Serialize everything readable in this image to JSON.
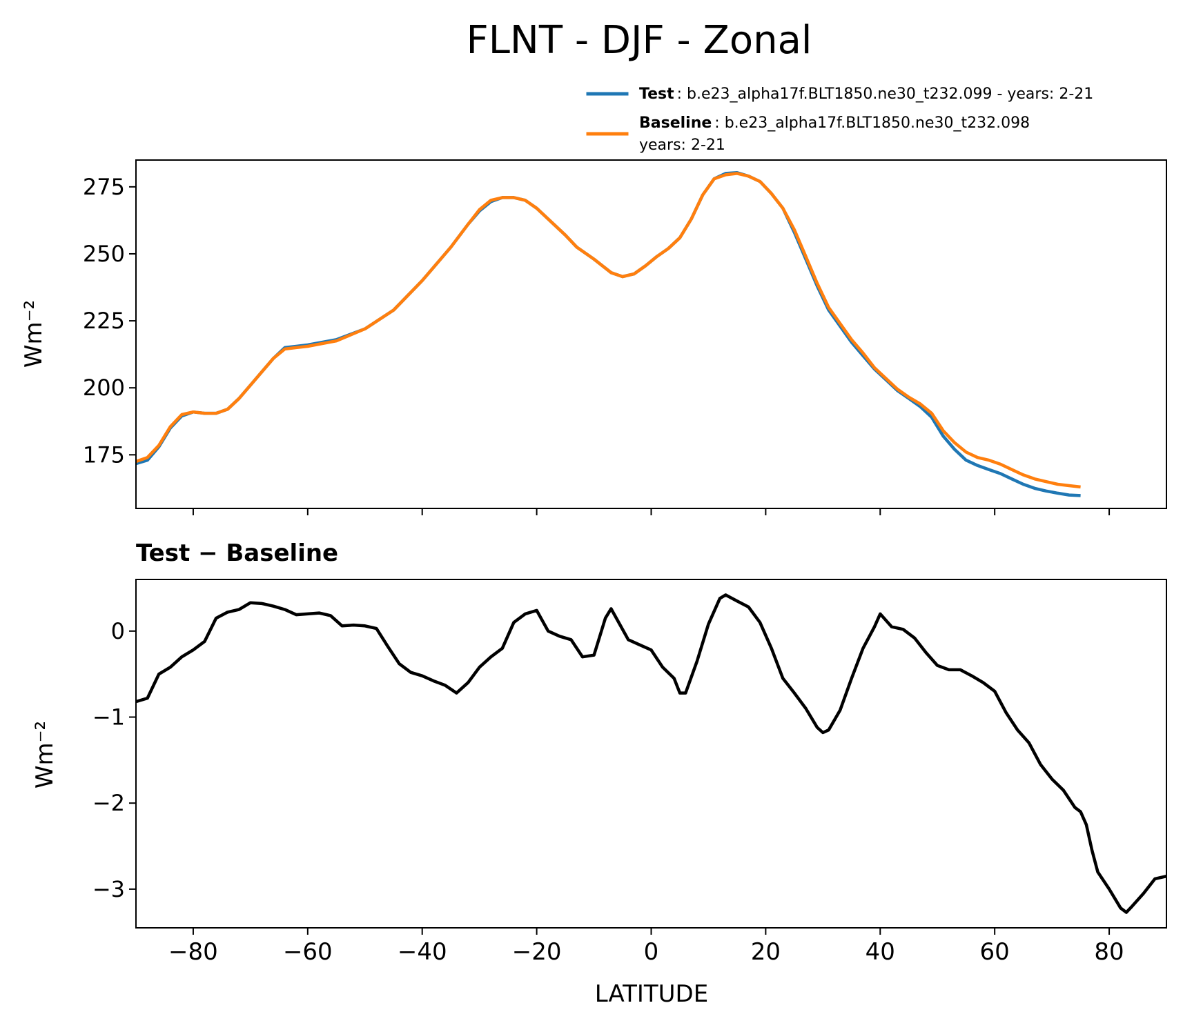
{
  "title": "FLNT - DJF - Zonal",
  "colors": {
    "test": "#1f77b4",
    "baseline": "#ff7f0e",
    "diff": "#000000"
  },
  "legend": {
    "placement": "above top panel, right",
    "items": [
      {
        "bold": "Test",
        "text": ": b.e23_alpha17f.BLT1850.ne30_t232.099 - years: 2-21",
        "text2": ""
      },
      {
        "bold": "Baseline",
        "text": ": b.e23_alpha17f.BLT1850.ne30_t232.098",
        "text2": "years: 2-21"
      }
    ]
  },
  "chart_data": [
    {
      "type": "line",
      "ylabel": "Wm⁻²",
      "xlim": [
        -90,
        90
      ],
      "ylim": [
        155,
        285
      ],
      "yticks": [
        175,
        200,
        225,
        250,
        275
      ],
      "ytick_labels": [
        "175",
        "200",
        "225",
        "250",
        "275"
      ],
      "series": [
        {
          "name": "Test",
          "points": [
            [
              -90,
              171.7
            ],
            [
              -88,
              173
            ],
            [
              -86,
              178
            ],
            [
              -84,
              185
            ],
            [
              -82,
              189.5
            ],
            [
              -80,
              191
            ],
            [
              -78,
              190.5
            ],
            [
              -76,
              190.5
            ],
            [
              -74,
              192
            ],
            [
              -72,
              196
            ],
            [
              -70,
              201
            ],
            [
              -68,
              206
            ],
            [
              -66,
              211
            ],
            [
              -64,
              215
            ],
            [
              -62,
              215.5
            ],
            [
              -60,
              216
            ],
            [
              -55,
              218
            ],
            [
              -50,
              222
            ],
            [
              -45,
              229
            ],
            [
              -40,
              240
            ],
            [
              -35,
              252.5
            ],
            [
              -32,
              261
            ],
            [
              -30,
              266
            ],
            [
              -28,
              269.5
            ],
            [
              -26,
              271
            ],
            [
              -24,
              271
            ],
            [
              -22,
              270
            ],
            [
              -20,
              267
            ],
            [
              -15,
              257
            ],
            [
              -13,
              252.5
            ],
            [
              -10,
              248
            ],
            [
              -7,
              243
            ],
            [
              -5,
              241.5
            ],
            [
              -3,
              242.5
            ],
            [
              -1,
              245.5
            ],
            [
              1,
              249
            ],
            [
              3,
              252
            ],
            [
              5,
              256
            ],
            [
              7,
              263
            ],
            [
              9,
              272
            ],
            [
              11,
              278
            ],
            [
              13,
              280
            ],
            [
              15,
              280.3
            ],
            [
              17,
              279
            ],
            [
              19,
              277
            ],
            [
              21,
              272.5
            ],
            [
              23,
              267
            ],
            [
              25,
              258
            ],
            [
              27,
              248
            ],
            [
              29,
              238
            ],
            [
              31,
              229
            ],
            [
              33,
              223
            ],
            [
              35,
              217
            ],
            [
              37,
              212
            ],
            [
              39,
              207
            ],
            [
              41,
              203
            ],
            [
              43,
              199
            ],
            [
              45,
              196
            ],
            [
              47,
              193
            ],
            [
              49,
              189
            ],
            [
              51,
              182
            ],
            [
              53,
              177
            ],
            [
              55,
              173
            ],
            [
              57,
              171
            ],
            [
              59,
              169.5
            ],
            [
              61,
              168
            ],
            [
              63,
              166
            ],
            [
              65,
              164
            ],
            [
              67,
              162.5
            ],
            [
              69,
              161.5
            ],
            [
              71,
              160.7
            ],
            [
              73,
              160
            ],
            [
              75,
              159.8
            ]
          ]
        },
        {
          "name": "Baseline",
          "points": [
            [
              -90,
              172.5
            ],
            [
              -88,
              174
            ],
            [
              -86,
              178.5
            ],
            [
              -84,
              185.5
            ],
            [
              -82,
              190
            ],
            [
              -80,
              191
            ],
            [
              -78,
              190.5
            ],
            [
              -76,
              190.5
            ],
            [
              -74,
              192
            ],
            [
              -72,
              196
            ],
            [
              -70,
              201
            ],
            [
              -68,
              206
            ],
            [
              -66,
              211
            ],
            [
              -64,
              214.5
            ],
            [
              -62,
              215
            ],
            [
              -60,
              215.5
            ],
            [
              -55,
              217.5
            ],
            [
              -50,
              222
            ],
            [
              -45,
              229
            ],
            [
              -40,
              240
            ],
            [
              -35,
              252.5
            ],
            [
              -32,
              261
            ],
            [
              -30,
              266.5
            ],
            [
              -28,
              270
            ],
            [
              -26,
              271
            ],
            [
              -24,
              271
            ],
            [
              -22,
              270
            ],
            [
              -20,
              267
            ],
            [
              -15,
              257
            ],
            [
              -13,
              252.5
            ],
            [
              -10,
              248
            ],
            [
              -7,
              243
            ],
            [
              -5,
              241.5
            ],
            [
              -3,
              242.5
            ],
            [
              -1,
              245.5
            ],
            [
              1,
              249
            ],
            [
              3,
              252
            ],
            [
              5,
              256
            ],
            [
              7,
              263
            ],
            [
              9,
              272
            ],
            [
              11,
              278
            ],
            [
              13,
              279.5
            ],
            [
              15,
              280
            ],
            [
              17,
              279
            ],
            [
              19,
              277
            ],
            [
              21,
              272.5
            ],
            [
              23,
              267
            ],
            [
              25,
              259
            ],
            [
              27,
              249
            ],
            [
              29,
              239
            ],
            [
              31,
              230
            ],
            [
              33,
              224
            ],
            [
              35,
              218
            ],
            [
              37,
              213
            ],
            [
              39,
              207.5
            ],
            [
              41,
              203.5
            ],
            [
              43,
              199.5
            ],
            [
              45,
              196.5
            ],
            [
              47,
              194
            ],
            [
              49,
              190.5
            ],
            [
              51,
              184
            ],
            [
              53,
              179.5
            ],
            [
              55,
              176
            ],
            [
              57,
              174
            ],
            [
              59,
              173
            ],
            [
              61,
              171.5
            ],
            [
              63,
              169.5
            ],
            [
              65,
              167.5
            ],
            [
              67,
              166
            ],
            [
              69,
              165
            ],
            [
              71,
              164
            ],
            [
              73,
              163.5
            ],
            [
              75,
              163
            ]
          ]
        }
      ]
    },
    {
      "type": "line",
      "title": "Test − Baseline",
      "xlabel": "LATITUDE",
      "ylabel": "Wm⁻²",
      "xlim": [
        -90,
        90
      ],
      "ylim": [
        -3.45,
        0.6
      ],
      "xticks": [
        -80,
        -60,
        -40,
        -20,
        0,
        20,
        40,
        60,
        80
      ],
      "xtick_labels": [
        "−80",
        "−60",
        "−40",
        "−20",
        "0",
        "20",
        "40",
        "60",
        "80"
      ],
      "yticks": [
        0,
        -1,
        -2,
        -3
      ],
      "ytick_labels": [
        "0",
        "−1",
        "−2",
        "−3"
      ],
      "series": [
        {
          "name": "Test − Baseline",
          "points": [
            [
              -90,
              -0.82
            ],
            [
              -88,
              -0.78
            ],
            [
              -86,
              -0.5
            ],
            [
              -84,
              -0.42
            ],
            [
              -82,
              -0.3
            ],
            [
              -80,
              -0.22
            ],
            [
              -78,
              -0.12
            ],
            [
              -76,
              0.15
            ],
            [
              -74,
              0.22
            ],
            [
              -72,
              0.25
            ],
            [
              -70,
              0.33
            ],
            [
              -68,
              0.32
            ],
            [
              -66,
              0.29
            ],
            [
              -64,
              0.25
            ],
            [
              -62,
              0.19
            ],
            [
              -60,
              0.2
            ],
            [
              -58,
              0.21
            ],
            [
              -56,
              0.18
            ],
            [
              -54,
              0.06
            ],
            [
              -52,
              0.07
            ],
            [
              -50,
              0.06
            ],
            [
              -48,
              0.03
            ],
            [
              -46,
              -0.18
            ],
            [
              -44,
              -0.38
            ],
            [
              -42,
              -0.48
            ],
            [
              -40,
              -0.52
            ],
            [
              -38,
              -0.58
            ],
            [
              -36,
              -0.63
            ],
            [
              -34,
              -0.72
            ],
            [
              -32,
              -0.6
            ],
            [
              -30,
              -0.42
            ],
            [
              -28,
              -0.3
            ],
            [
              -26,
              -0.2
            ],
            [
              -24,
              0.1
            ],
            [
              -22,
              0.2
            ],
            [
              -20,
              0.24
            ],
            [
              -18,
              0.0
            ],
            [
              -16,
              -0.06
            ],
            [
              -14,
              -0.1
            ],
            [
              -12,
              -0.3
            ],
            [
              -10,
              -0.28
            ],
            [
              -8,
              0.15
            ],
            [
              -7,
              0.26
            ],
            [
              -6,
              0.14
            ],
            [
              -4,
              -0.1
            ],
            [
              -2,
              -0.16
            ],
            [
              0,
              -0.22
            ],
            [
              2,
              -0.42
            ],
            [
              4,
              -0.55
            ],
            [
              5,
              -0.72
            ],
            [
              6,
              -0.72
            ],
            [
              8,
              -0.35
            ],
            [
              10,
              0.08
            ],
            [
              12,
              0.38
            ],
            [
              13,
              0.42
            ],
            [
              15,
              0.35
            ],
            [
              17,
              0.28
            ],
            [
              19,
              0.1
            ],
            [
              21,
              -0.2
            ],
            [
              23,
              -0.55
            ],
            [
              25,
              -0.72
            ],
            [
              27,
              -0.9
            ],
            [
              29,
              -1.12
            ],
            [
              30,
              -1.18
            ],
            [
              31,
              -1.15
            ],
            [
              33,
              -0.92
            ],
            [
              35,
              -0.55
            ],
            [
              37,
              -0.2
            ],
            [
              39,
              0.05
            ],
            [
              40,
              0.2
            ],
            [
              42,
              0.05
            ],
            [
              44,
              0.02
            ],
            [
              46,
              -0.08
            ],
            [
              48,
              -0.25
            ],
            [
              50,
              -0.4
            ],
            [
              52,
              -0.45
            ],
            [
              54,
              -0.45
            ],
            [
              56,
              -0.52
            ],
            [
              58,
              -0.6
            ],
            [
              60,
              -0.7
            ],
            [
              62,
              -0.95
            ],
            [
              64,
              -1.15
            ],
            [
              66,
              -1.3
            ],
            [
              68,
              -1.55
            ],
            [
              70,
              -1.72
            ],
            [
              72,
              -1.85
            ],
            [
              74,
              -2.05
            ],
            [
              75,
              -2.1
            ],
            [
              76,
              -2.25
            ],
            [
              77,
              -2.55
            ],
            [
              78,
              -2.8
            ],
            [
              80,
              -3.0
            ],
            [
              82,
              -3.22
            ],
            [
              83,
              -3.27
            ],
            [
              84,
              -3.2
            ],
            [
              86,
              -3.05
            ],
            [
              88,
              -2.88
            ],
            [
              90,
              -2.85
            ]
          ]
        }
      ]
    }
  ]
}
